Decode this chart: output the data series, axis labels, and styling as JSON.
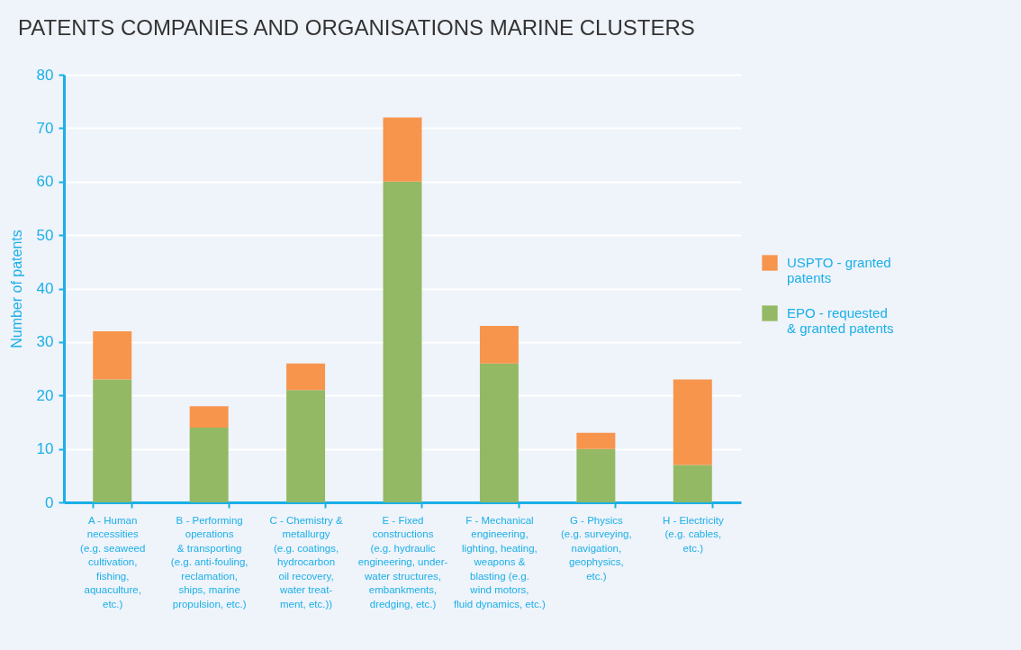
{
  "chart_data": {
    "type": "bar",
    "title": "PATENTS COMPANIES AND ORGANISATIONS MARINE CLUSTERS",
    "ylabel": "Number of patents",
    "categories": [
      "A - Human\nnecessities\n(e.g. seaweed\ncultivation,\nfishing,\naquaculture,\netc.)",
      "B - Performing\noperations\n& transporting\n(e.g. anti-fouling,\nreclamation,\nships, marine\npropulsion, etc.)",
      "C - Chemistry &\nmetallurgy\n(e.g. coatings,\nhydrocarbon\noil recovery,\nwater treat-\nment, etc.))",
      "E - Fixed\nconstructions\n(e.g. hydraulic\nengineering, under-\nwater structures,\nembankments,\ndredging, etc.)",
      "F - Mechanical\nengineering,\nlighting, heating,\nweapons &\nblasting (e.g.\nwind motors,\nfluid dynamics, etc.)",
      "G - Physics\n(e.g. surveying,\nnavigation,\ngeophysics,\netc.)",
      "H - Electricity\n(e.g. cables,\netc.)"
    ],
    "series": [
      {
        "name": "EPO - requested\n& granted patents",
        "color": "#93b964",
        "values": [
          23,
          14,
          21,
          60,
          26,
          10,
          7
        ]
      },
      {
        "name": "USPTO - granted\npatents",
        "color": "#f7954c",
        "values": [
          9,
          4,
          5,
          12,
          7,
          3,
          16
        ]
      }
    ],
    "stacked": true,
    "ylim": [
      0,
      80
    ],
    "yticks": [
      0,
      10,
      20,
      30,
      40,
      50,
      60,
      70,
      80
    ],
    "grid": "y",
    "legend": "right"
  }
}
